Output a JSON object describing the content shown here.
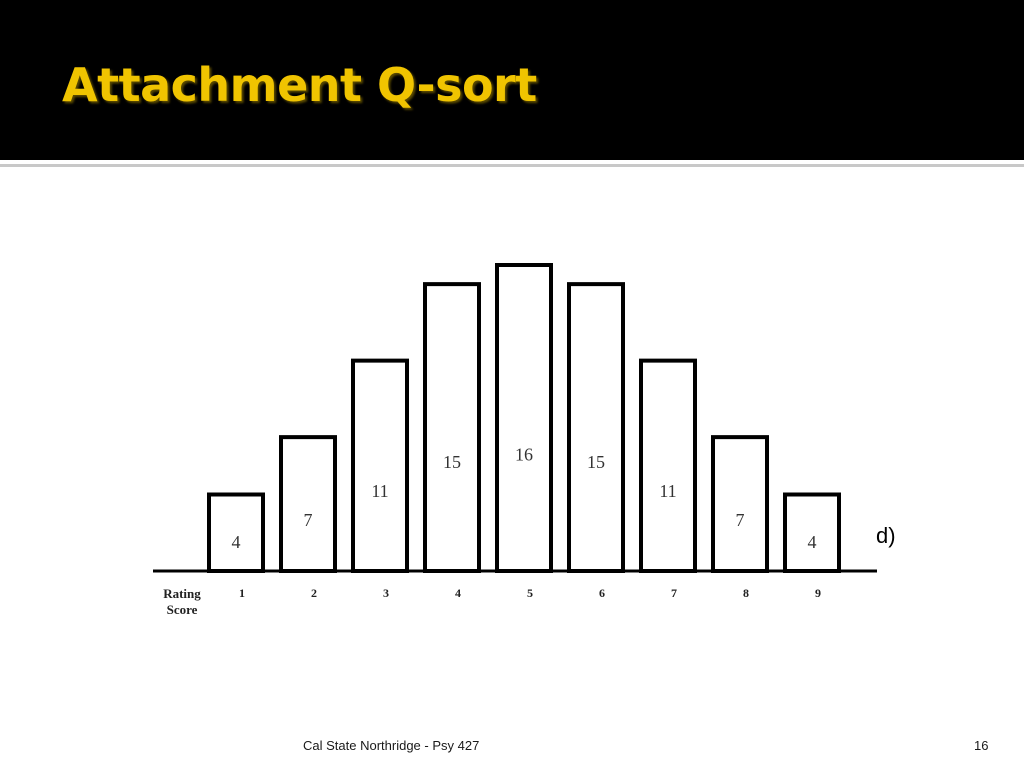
{
  "slide": {
    "title": "Attachment Q-sort",
    "partial_text": "d)",
    "footer": "Cal State Northridge - Psy 427",
    "page_number": "16"
  },
  "chart_data": {
    "type": "bar",
    "title": "",
    "xlabel": "Rating Score",
    "ylabel": "",
    "categories": [
      "1",
      "2",
      "3",
      "4",
      "5",
      "6",
      "7",
      "8",
      "9"
    ],
    "values": [
      4,
      7,
      11,
      15,
      16,
      15,
      11,
      7,
      4
    ],
    "ylim": [
      0,
      16
    ],
    "grid": false,
    "legend": "none"
  }
}
